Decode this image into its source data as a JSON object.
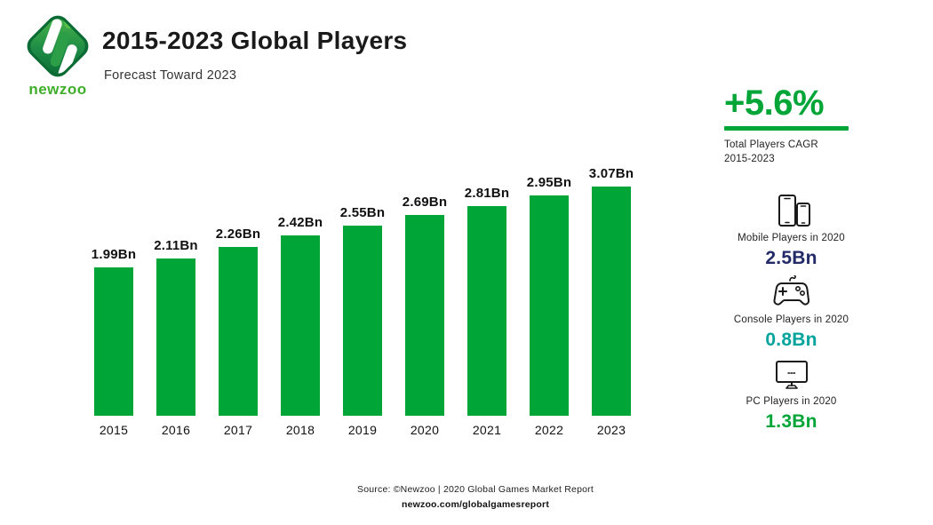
{
  "header": {
    "title": "2015-2023 Global Players",
    "subtitle": "Forecast Toward 2023",
    "logo_text": "newzoo"
  },
  "chart_data": {
    "type": "bar",
    "title": "2015-2023 Global Players",
    "categories": [
      "2015",
      "2016",
      "2017",
      "2018",
      "2019",
      "2020",
      "2021",
      "2022",
      "2023"
    ],
    "values": [
      1.99,
      2.11,
      2.26,
      2.42,
      2.55,
      2.69,
      2.81,
      2.95,
      3.07
    ],
    "value_labels": [
      "1.99Bn",
      "2.11Bn",
      "2.26Bn",
      "2.42Bn",
      "2.55Bn",
      "2.69Bn",
      "2.81Bn",
      "2.95Bn",
      "3.07Bn"
    ],
    "unit": "Bn",
    "bar_color": "#00A538",
    "ylim": [
      0,
      3.3
    ],
    "xlabel": "",
    "ylabel": "",
    "grid": false,
    "legend": false
  },
  "cagr": {
    "value": "+5.6%",
    "label_line1": "Total Players CAGR",
    "label_line2": "2015-2023",
    "color": "#00A538"
  },
  "stats": [
    {
      "icon": "mobile-devices-icon",
      "label": "Mobile Players in 2020",
      "value": "2.5Bn",
      "color": "#232A68"
    },
    {
      "icon": "gamepad-icon",
      "label": "Console Players in 2020",
      "value": "0.8Bn",
      "color": "#00A49D"
    },
    {
      "icon": "monitor-icon",
      "label": "PC Players in 2020",
      "value": "1.3Bn",
      "color": "#00A538"
    }
  ],
  "footer": {
    "source": "Source: ©Newzoo | 2020 Global Games Market Report",
    "link": "newzoo.com/globalgamesreport"
  },
  "colors": {
    "accent_green": "#00A538",
    "logo_green": "#3FAE2A",
    "navy": "#232A68",
    "teal": "#00A49D"
  }
}
